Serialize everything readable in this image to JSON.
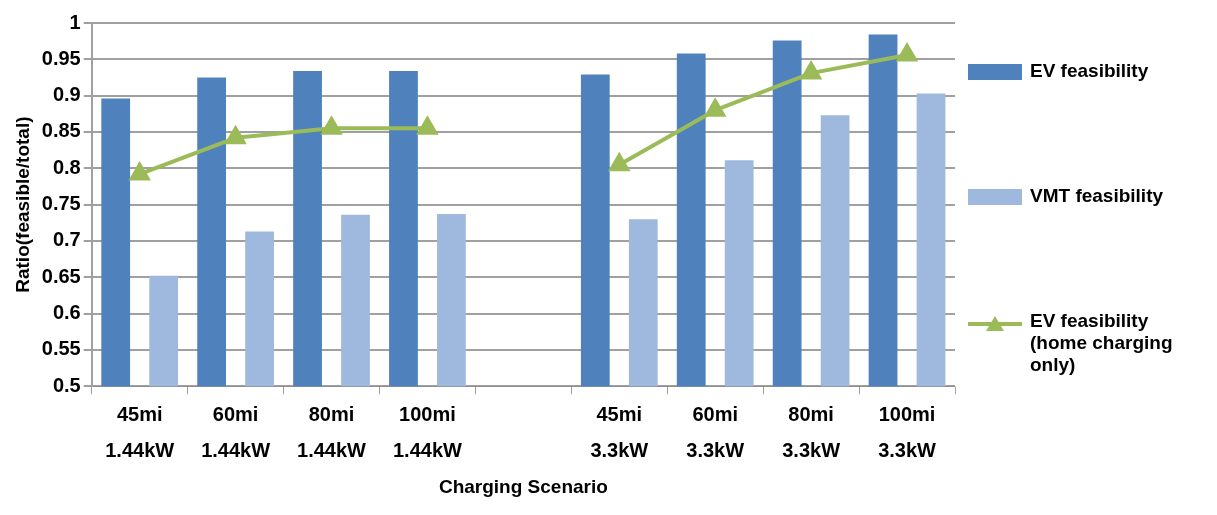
{
  "chart_data": {
    "type": "bar",
    "xlabel": "Charging Scenario",
    "ylabel": "Ratio(feasible/total)",
    "categories": [
      "45mi\n1.44kW",
      "60mi\n1.44kW",
      "80mi\n1.44kW",
      "100mi\n1.44kW",
      null,
      "45mi\n3.3kW",
      "60mi\n3.3kW",
      "80mi\n3.3kW",
      "100mi\n3.3kW"
    ],
    "series": [
      {
        "name": "EV feasibility",
        "color": "#4f81bd",
        "values": [
          0.896,
          0.925,
          0.934,
          0.934,
          null,
          0.929,
          0.958,
          0.976,
          0.984
        ]
      },
      {
        "name": "VMT feasibility",
        "color": "#9fb9de",
        "values": [
          0.652,
          0.713,
          0.736,
          0.737,
          null,
          0.73,
          0.811,
          0.873,
          0.903
        ]
      },
      {
        "name": "EV feasibility (home charging only)",
        "type": "line",
        "color": "#9bbb59",
        "marker": "triangle",
        "values": [
          0.792,
          0.842,
          0.855,
          0.855,
          null,
          0.805,
          0.88,
          0.931,
          0.956
        ]
      }
    ],
    "ylim": [
      0.5,
      1
    ],
    "yticks": [
      0.5,
      0.55,
      0.6,
      0.65,
      0.7,
      0.75,
      0.8,
      0.85,
      0.9,
      0.95,
      1
    ],
    "grid": "y",
    "legend": "right"
  }
}
